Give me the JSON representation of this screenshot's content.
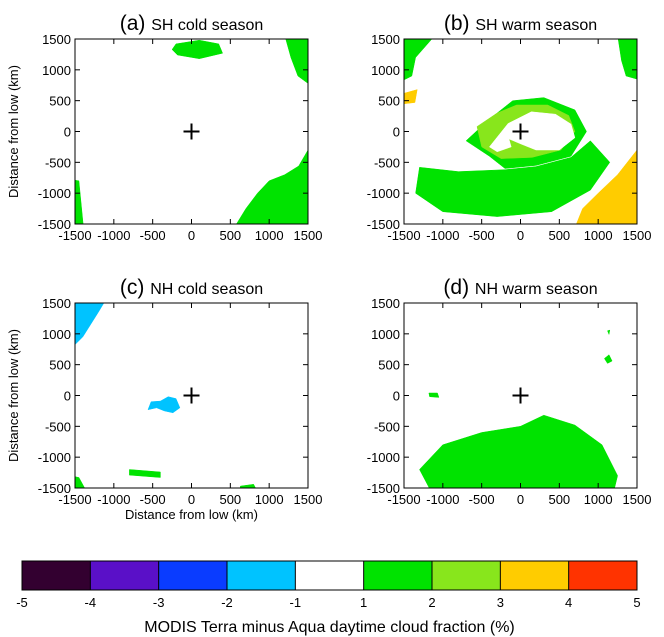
{
  "chart_data": [
    {
      "type": "heatmap",
      "letter": "(a)",
      "title": "SH cold season",
      "xlabel": "",
      "ylabel": "Distance from low (km)",
      "xlim": [
        -1500,
        1500
      ],
      "ylim": [
        -1500,
        1500
      ],
      "xticks": [
        "-1500",
        "-1000",
        "-500",
        "0",
        "500",
        "1000",
        "1500"
      ],
      "yticks": [
        "1500",
        "1000",
        "500",
        "0",
        "-500",
        "-1000",
        "-1500"
      ],
      "regions": [
        {
          "level": "1 to 2",
          "color": "#00e300",
          "points": [
            [
              -200,
              1420
            ],
            [
              100,
              1480
            ],
            [
              350,
              1420
            ],
            [
              400,
              1270
            ],
            [
              100,
              1180
            ],
            [
              -180,
              1240
            ],
            [
              -250,
              1330
            ]
          ]
        },
        {
          "level": "1 to 2",
          "color": "#00e300",
          "points": [
            [
              1500,
              1560
            ],
            [
              1500,
              780
            ],
            [
              1370,
              900
            ],
            [
              1280,
              1200
            ],
            [
              1200,
              1560
            ]
          ]
        },
        {
          "level": "1 to 2",
          "color": "#00e300",
          "points": [
            [
              -1560,
              -780
            ],
            [
              -1450,
              -800
            ],
            [
              -1390,
              -1560
            ],
            [
              -1560,
              -1560
            ]
          ]
        },
        {
          "level": "1 to 2",
          "color": "#00e300",
          "points": [
            [
              1500,
              -300
            ],
            [
              1380,
              -560
            ],
            [
              1200,
              -700
            ],
            [
              1000,
              -800
            ],
            [
              850,
              -1000
            ],
            [
              700,
              -1250
            ],
            [
              550,
              -1560
            ],
            [
              1500,
              -1560
            ]
          ]
        }
      ]
    },
    {
      "type": "heatmap",
      "letter": "(b)",
      "title": "SH warm season",
      "xlabel": "",
      "ylabel": "",
      "xlim": [
        -1500,
        1500
      ],
      "ylim": [
        -1500,
        1500
      ],
      "xticks": [
        "-1500",
        "-1000",
        "-500",
        "0",
        "500",
        "1000",
        "1500"
      ],
      "yticks": [
        "1500",
        "1000",
        "500",
        "0",
        "-500",
        "-1000",
        "-1500"
      ],
      "regions": [
        {
          "level": "1 to 2",
          "color": "#00e300",
          "points": [
            [
              -1560,
              1560
            ],
            [
              -1100,
              1560
            ],
            [
              -1350,
              1200
            ],
            [
              -1400,
              900
            ],
            [
              -1560,
              800
            ]
          ]
        },
        {
          "level": "1 to 2",
          "color": "#00e300",
          "points": [
            [
              -700,
              -150
            ],
            [
              -400,
              200
            ],
            [
              -100,
              500
            ],
            [
              300,
              550
            ],
            [
              700,
              350
            ],
            [
              850,
              0
            ],
            [
              650,
              -400
            ],
            [
              200,
              -550
            ],
            [
              -200,
              -600
            ],
            [
              -400,
              -400
            ]
          ]
        },
        {
          "level": "1 to 2",
          "color": "#00e300",
          "points": [
            [
              -1300,
              -580
            ],
            [
              -800,
              -650
            ],
            [
              -200,
              -620
            ],
            [
              200,
              -570
            ],
            [
              650,
              -420
            ],
            [
              900,
              -150
            ],
            [
              1150,
              -500
            ],
            [
              900,
              -950
            ],
            [
              400,
              -1300
            ],
            [
              -300,
              -1380
            ],
            [
              -1000,
              -1300
            ],
            [
              -1350,
              -1000
            ]
          ]
        },
        {
          "level": "1 to 2",
          "color": "#00e300",
          "points": [
            [
              1500,
              1560
            ],
            [
              1500,
              850
            ],
            [
              1360,
              900
            ],
            [
              1300,
              1150
            ],
            [
              1250,
              1560
            ]
          ]
        },
        {
          "level": "2 to 3",
          "color": "#88e61c",
          "points": [
            [
              -560,
              80
            ],
            [
              -300,
              300
            ],
            [
              -50,
              430
            ],
            [
              350,
              430
            ],
            [
              620,
              260
            ],
            [
              700,
              0
            ],
            [
              520,
              -300
            ],
            [
              150,
              -420
            ],
            [
              -250,
              -440
            ],
            [
              -500,
              -250
            ]
          ]
        },
        {
          "level": "3 to 4",
          "color": "#ffcc00",
          "points": [
            [
              -1500,
              620
            ],
            [
              -1330,
              680
            ],
            [
              -1360,
              470
            ],
            [
              -1500,
              450
            ]
          ]
        },
        {
          "level": "3 to 4",
          "color": "#ffcc00",
          "points": [
            [
              1500,
              -300
            ],
            [
              1250,
              -700
            ],
            [
              1000,
              -1000
            ],
            [
              800,
              -1250
            ],
            [
              700,
              -1560
            ],
            [
              1500,
              -1560
            ]
          ]
        },
        {
          "level": "-1 to 1",
          "color": "#ffffff",
          "points": [
            [
              -400,
              -250
            ],
            [
              -160,
              130
            ],
            [
              140,
              320
            ],
            [
              450,
              280
            ],
            [
              650,
              120
            ],
            [
              700,
              -100
            ],
            [
              500,
              -300
            ],
            [
              200,
              -300
            ],
            [
              0,
              -200
            ],
            [
              -150,
              -120
            ],
            [
              -120,
              -250
            ],
            [
              -300,
              -330
            ]
          ]
        }
      ]
    },
    {
      "type": "heatmap",
      "letter": "(c)",
      "title": "NH cold season",
      "xlabel": "Distance from low (km)",
      "ylabel": "Distance from low (km)",
      "xlim": [
        -1500,
        1500
      ],
      "ylim": [
        -1500,
        1500
      ],
      "xticks": [
        "-1500",
        "-1000",
        "-500",
        "0",
        "500",
        "1000",
        "1500"
      ],
      "yticks": [
        "1500",
        "1000",
        "500",
        "0",
        "-500",
        "-1000",
        "-1500"
      ],
      "regions": [
        {
          "level": "-2 to -1",
          "color": "#00c3ff",
          "points": [
            [
              -1560,
              1560
            ],
            [
              -1100,
              1560
            ],
            [
              -1200,
              1350
            ],
            [
              -1400,
              950
            ],
            [
              -1560,
              750
            ]
          ]
        },
        {
          "level": "-2 to -1",
          "color": "#00c3ff",
          "points": [
            [
              -560,
              -230
            ],
            [
              -520,
              -100
            ],
            [
              -400,
              -90
            ],
            [
              -300,
              -20
            ],
            [
              -200,
              -50
            ],
            [
              -150,
              -200
            ],
            [
              -240,
              -280
            ],
            [
              -350,
              -250
            ],
            [
              -450,
              -200
            ]
          ]
        },
        {
          "level": "1 to 2",
          "color": "#00e300",
          "points": [
            [
              -1560,
              -1300
            ],
            [
              -1450,
              -1330
            ],
            [
              -1350,
              -1560
            ],
            [
              -1560,
              -1560
            ]
          ]
        },
        {
          "level": "1 to 2",
          "color": "#00e300",
          "points": [
            [
              -800,
              -1200
            ],
            [
              -400,
              -1240
            ],
            [
              -400,
              -1330
            ],
            [
              -800,
              -1290
            ]
          ]
        },
        {
          "level": "1 to 2",
          "color": "#00e300",
          "points": [
            [
              630,
              -1470
            ],
            [
              800,
              -1440
            ],
            [
              850,
              -1560
            ],
            [
              620,
              -1560
            ]
          ]
        }
      ]
    },
    {
      "type": "heatmap",
      "letter": "(d)",
      "title": "NH warm season",
      "xlabel": "",
      "ylabel": "",
      "xlim": [
        -1500,
        1500
      ],
      "ylim": [
        -1500,
        1500
      ],
      "xticks": [
        "-1500",
        "-1000",
        "-500",
        "0",
        "500",
        "1000",
        "1500"
      ],
      "yticks": [
        "1500",
        "1000",
        "500",
        "0",
        "-500",
        "-1000",
        "-1500"
      ],
      "regions": [
        {
          "level": "1 to 2",
          "color": "#00e300",
          "points": [
            [
              -1300,
              -1200
            ],
            [
              -1000,
              -800
            ],
            [
              -500,
              -600
            ],
            [
              0,
              -500
            ],
            [
              300,
              -320
            ],
            [
              700,
              -480
            ],
            [
              1050,
              -800
            ],
            [
              1250,
              -1300
            ],
            [
              1200,
              -1560
            ],
            [
              -1150,
              -1560
            ]
          ]
        },
        {
          "level": "1 to 2",
          "color": "#00e300",
          "points": [
            [
              1080,
              600
            ],
            [
              1140,
              660
            ],
            [
              1180,
              560
            ],
            [
              1120,
              520
            ]
          ]
        },
        {
          "level": "1 to 2",
          "color": "#00e300",
          "points": [
            [
              -1180,
              40
            ],
            [
              -1070,
              40
            ],
            [
              -1050,
              -30
            ],
            [
              -1170,
              -20
            ]
          ]
        },
        {
          "level": "1 to 2",
          "color": "#00e300",
          "points": [
            [
              1120,
              1050
            ],
            [
              1150,
              1060
            ],
            [
              1140,
              990
            ]
          ]
        }
      ]
    }
  ],
  "colorbar": {
    "ticks": [
      "-5",
      "-4",
      "-3",
      "-2",
      "-1",
      "1",
      "2",
      "3",
      "4",
      "5"
    ],
    "colors": [
      "#330030",
      "#5a10c8",
      "#0a3cff",
      "#00c3ff",
      "#ffffff",
      "#00e300",
      "#88e61c",
      "#ffcc00",
      "#ff3300"
    ],
    "label": "MODIS Terra minus Aqua daytime cloud fraction (%)"
  }
}
